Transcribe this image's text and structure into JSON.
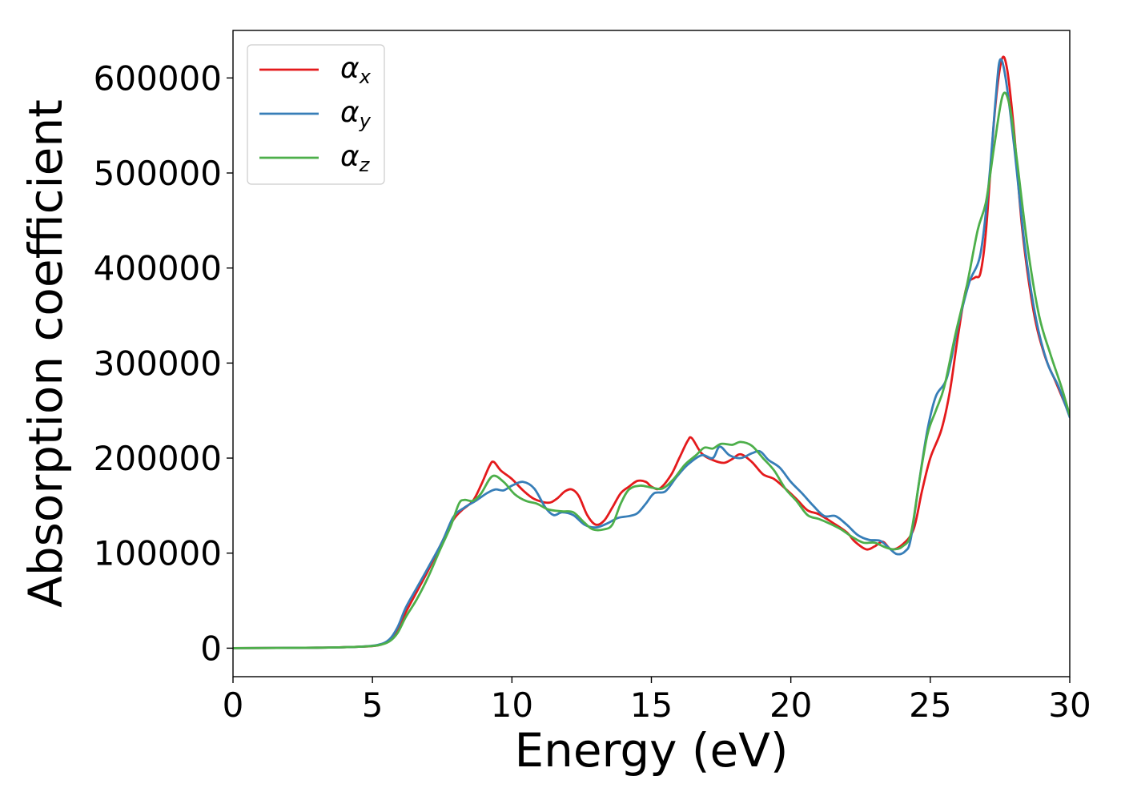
{
  "chart_data": {
    "type": "line",
    "title": "",
    "xlabel": "Energy (eV)",
    "ylabel": "Absorption coefficient",
    "xlim": [
      0,
      30
    ],
    "ylim": [
      -30000,
      650000
    ],
    "xticks": [
      0,
      5,
      10,
      15,
      20,
      25,
      30
    ],
    "yticks": [
      0,
      100000,
      200000,
      300000,
      400000,
      500000,
      600000
    ],
    "grid": false,
    "legend_position": "top-left",
    "series": [
      {
        "name": "αx",
        "legend_base": "α",
        "legend_sub": "x",
        "color": "#e41a1c",
        "points": [
          [
            0,
            0
          ],
          [
            3,
            500
          ],
          [
            4.5,
            1500
          ],
          [
            5.2,
            3000
          ],
          [
            5.6,
            8000
          ],
          [
            5.9,
            18000
          ],
          [
            6.2,
            38000
          ],
          [
            6.6,
            60000
          ],
          [
            7.0,
            82000
          ],
          [
            7.5,
            112000
          ],
          [
            7.9,
            135000
          ],
          [
            8.2,
            145000
          ],
          [
            8.6,
            155000
          ],
          [
            8.9,
            172000
          ],
          [
            9.2,
            192000
          ],
          [
            9.35,
            196000
          ],
          [
            9.6,
            187000
          ],
          [
            10.0,
            178000
          ],
          [
            10.4,
            166000
          ],
          [
            10.8,
            157000
          ],
          [
            11.3,
            153000
          ],
          [
            11.6,
            157000
          ],
          [
            11.9,
            165000
          ],
          [
            12.15,
            167000
          ],
          [
            12.4,
            160000
          ],
          [
            12.7,
            140000
          ],
          [
            13.0,
            130000
          ],
          [
            13.3,
            134000
          ],
          [
            13.6,
            148000
          ],
          [
            13.9,
            163000
          ],
          [
            14.2,
            170000
          ],
          [
            14.5,
            176000
          ],
          [
            14.8,
            175000
          ],
          [
            15.0,
            170000
          ],
          [
            15.3,
            168000
          ],
          [
            15.7,
            182000
          ],
          [
            16.0,
            200000
          ],
          [
            16.3,
            218000
          ],
          [
            16.45,
            221000
          ],
          [
            16.8,
            205000
          ],
          [
            17.2,
            198000
          ],
          [
            17.6,
            195000
          ],
          [
            17.9,
            199000
          ],
          [
            18.2,
            204000
          ],
          [
            18.6,
            196000
          ],
          [
            19.0,
            183000
          ],
          [
            19.4,
            178000
          ],
          [
            19.8,
            168000
          ],
          [
            20.2,
            157000
          ],
          [
            20.6,
            145000
          ],
          [
            21.0,
            141000
          ],
          [
            21.5,
            132000
          ],
          [
            22.0,
            122000
          ],
          [
            22.3,
            112000
          ],
          [
            22.7,
            104000
          ],
          [
            23.0,
            107000
          ],
          [
            23.3,
            112000
          ],
          [
            23.6,
            104000
          ],
          [
            24.0,
            109000
          ],
          [
            24.4,
            125000
          ],
          [
            24.7,
            165000
          ],
          [
            25.0,
            200000
          ],
          [
            25.4,
            230000
          ],
          [
            25.7,
            270000
          ],
          [
            26.0,
            330000
          ],
          [
            26.3,
            380000
          ],
          [
            26.6,
            390000
          ],
          [
            26.8,
            395000
          ],
          [
            27.0,
            440000
          ],
          [
            27.3,
            560000
          ],
          [
            27.55,
            618000
          ],
          [
            27.75,
            610000
          ],
          [
            28.0,
            545000
          ],
          [
            28.3,
            440000
          ],
          [
            28.7,
            355000
          ],
          [
            29.1,
            308000
          ],
          [
            29.5,
            280000
          ],
          [
            30.0,
            245000
          ]
        ]
      },
      {
        "name": "αy",
        "legend_base": "α",
        "legend_sub": "y",
        "color": "#377eb8",
        "points": [
          [
            0,
            0
          ],
          [
            3,
            500
          ],
          [
            4.5,
            1500
          ],
          [
            5.2,
            3500
          ],
          [
            5.6,
            9000
          ],
          [
            5.9,
            22000
          ],
          [
            6.2,
            43000
          ],
          [
            6.6,
            64000
          ],
          [
            7.0,
            85000
          ],
          [
            7.5,
            112000
          ],
          [
            7.9,
            138000
          ],
          [
            8.3,
            148000
          ],
          [
            8.7,
            155000
          ],
          [
            9.1,
            163000
          ],
          [
            9.4,
            167000
          ],
          [
            9.7,
            166000
          ],
          [
            10.0,
            171000
          ],
          [
            10.4,
            175000
          ],
          [
            10.8,
            168000
          ],
          [
            11.2,
            148000
          ],
          [
            11.5,
            140000
          ],
          [
            11.8,
            143000
          ],
          [
            12.2,
            140000
          ],
          [
            12.6,
            130000
          ],
          [
            13.0,
            127000
          ],
          [
            13.4,
            131000
          ],
          [
            13.8,
            137000
          ],
          [
            14.2,
            139000
          ],
          [
            14.5,
            142000
          ],
          [
            14.8,
            152000
          ],
          [
            15.1,
            163000
          ],
          [
            15.5,
            165000
          ],
          [
            15.9,
            180000
          ],
          [
            16.3,
            193000
          ],
          [
            16.8,
            203000
          ],
          [
            17.2,
            200000
          ],
          [
            17.45,
            212000
          ],
          [
            17.8,
            203000
          ],
          [
            18.2,
            200000
          ],
          [
            18.6,
            205000
          ],
          [
            18.9,
            207000
          ],
          [
            19.2,
            198000
          ],
          [
            19.6,
            190000
          ],
          [
            20.0,
            175000
          ],
          [
            20.4,
            163000
          ],
          [
            20.8,
            150000
          ],
          [
            21.2,
            139000
          ],
          [
            21.6,
            139000
          ],
          [
            22.0,
            130000
          ],
          [
            22.4,
            119000
          ],
          [
            22.8,
            114000
          ],
          [
            23.2,
            113000
          ],
          [
            23.5,
            106000
          ],
          [
            23.8,
            99000
          ],
          [
            24.1,
            102000
          ],
          [
            24.3,
            115000
          ],
          [
            24.6,
            175000
          ],
          [
            24.9,
            230000
          ],
          [
            25.2,
            265000
          ],
          [
            25.6,
            285000
          ],
          [
            26.0,
            340000
          ],
          [
            26.4,
            385000
          ],
          [
            26.8,
            415000
          ],
          [
            27.1,
            490000
          ],
          [
            27.35,
            580000
          ],
          [
            27.5,
            619000
          ],
          [
            27.7,
            600000
          ],
          [
            28.0,
            530000
          ],
          [
            28.4,
            420000
          ],
          [
            28.8,
            345000
          ],
          [
            29.2,
            300000
          ],
          [
            29.6,
            275000
          ],
          [
            30.0,
            243000
          ]
        ]
      },
      {
        "name": "αz",
        "legend_base": "α",
        "legend_sub": "z",
        "color": "#4daf4a",
        "points": [
          [
            0,
            0
          ],
          [
            3,
            500
          ],
          [
            4.5,
            1500
          ],
          [
            5.2,
            3000
          ],
          [
            5.6,
            7000
          ],
          [
            5.9,
            16000
          ],
          [
            6.2,
            33000
          ],
          [
            6.6,
            52000
          ],
          [
            7.0,
            75000
          ],
          [
            7.4,
            102000
          ],
          [
            7.8,
            128000
          ],
          [
            8.1,
            152000
          ],
          [
            8.3,
            156000
          ],
          [
            8.6,
            155000
          ],
          [
            8.9,
            163000
          ],
          [
            9.3,
            181000
          ],
          [
            9.7,
            175000
          ],
          [
            10.1,
            162000
          ],
          [
            10.5,
            155000
          ],
          [
            10.9,
            152000
          ],
          [
            11.3,
            146000
          ],
          [
            11.8,
            144000
          ],
          [
            12.2,
            143000
          ],
          [
            12.6,
            132000
          ],
          [
            12.9,
            125000
          ],
          [
            13.3,
            125000
          ],
          [
            13.6,
            130000
          ],
          [
            13.9,
            152000
          ],
          [
            14.2,
            167000
          ],
          [
            14.6,
            171000
          ],
          [
            15.0,
            169000
          ],
          [
            15.4,
            168000
          ],
          [
            15.8,
            178000
          ],
          [
            16.2,
            193000
          ],
          [
            16.6,
            203000
          ],
          [
            16.9,
            211000
          ],
          [
            17.2,
            210000
          ],
          [
            17.5,
            215000
          ],
          [
            17.9,
            214000
          ],
          [
            18.2,
            217000
          ],
          [
            18.6,
            213000
          ],
          [
            19.0,
            200000
          ],
          [
            19.4,
            187000
          ],
          [
            19.8,
            168000
          ],
          [
            20.2,
            155000
          ],
          [
            20.6,
            140000
          ],
          [
            21.0,
            136000
          ],
          [
            21.4,
            131000
          ],
          [
            21.8,
            125000
          ],
          [
            22.2,
            117000
          ],
          [
            22.6,
            111000
          ],
          [
            23.0,
            111000
          ],
          [
            23.4,
            106000
          ],
          [
            23.7,
            104000
          ],
          [
            24.0,
            107000
          ],
          [
            24.3,
            120000
          ],
          [
            24.6,
            175000
          ],
          [
            24.9,
            225000
          ],
          [
            25.2,
            250000
          ],
          [
            25.5,
            275000
          ],
          [
            25.9,
            330000
          ],
          [
            26.3,
            380000
          ],
          [
            26.7,
            440000
          ],
          [
            27.0,
            470000
          ],
          [
            27.3,
            530000
          ],
          [
            27.6,
            582000
          ],
          [
            27.85,
            570000
          ],
          [
            28.1,
            515000
          ],
          [
            28.5,
            420000
          ],
          [
            28.9,
            350000
          ],
          [
            29.3,
            310000
          ],
          [
            29.7,
            275000
          ],
          [
            30.0,
            245000
          ]
        ]
      }
    ]
  }
}
